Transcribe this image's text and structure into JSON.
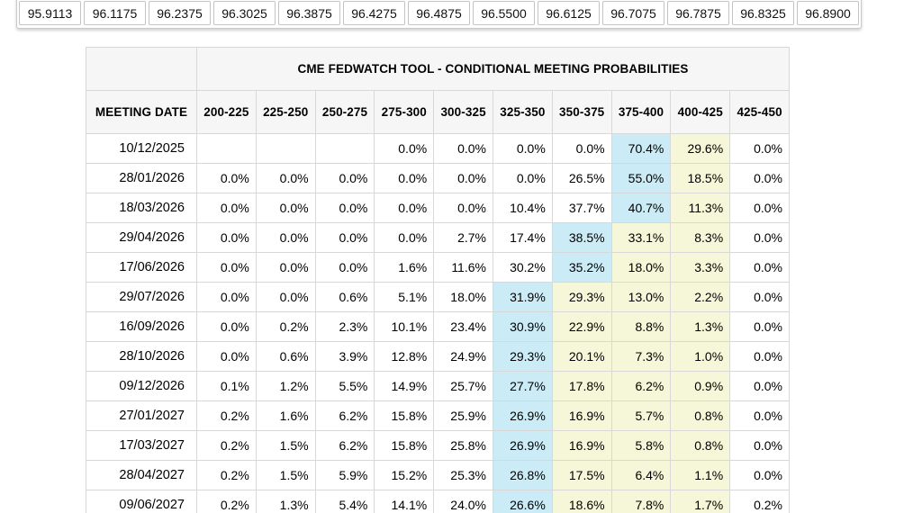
{
  "price_strip": {
    "values": [
      "95.9113",
      "96.1175",
      "96.2375",
      "96.3025",
      "96.3875",
      "96.4275",
      "96.4875",
      "96.5500",
      "96.6125",
      "96.7075",
      "96.7875",
      "96.8325",
      "96.8900"
    ]
  },
  "table": {
    "title": "CME FEDWATCH TOOL - CONDITIONAL MEETING PROBABILITIES",
    "date_header": "MEETING DATE",
    "rate_headers": [
      "200-225",
      "225-250",
      "250-275",
      "275-300",
      "300-325",
      "325-350",
      "350-375",
      "375-400",
      "400-425",
      "425-450"
    ],
    "rows": [
      {
        "date": "10/12/2025",
        "cells": [
          {
            "v": "",
            "hl": ""
          },
          {
            "v": "",
            "hl": ""
          },
          {
            "v": "",
            "hl": ""
          },
          {
            "v": "0.0%",
            "hl": ""
          },
          {
            "v": "0.0%",
            "hl": ""
          },
          {
            "v": "0.0%",
            "hl": ""
          },
          {
            "v": "0.0%",
            "hl": ""
          },
          {
            "v": "70.4%",
            "hl": "blue"
          },
          {
            "v": "29.6%",
            "hl": "yellow"
          },
          {
            "v": "0.0%",
            "hl": ""
          }
        ]
      },
      {
        "date": "28/01/2026",
        "cells": [
          {
            "v": "0.0%",
            "hl": ""
          },
          {
            "v": "0.0%",
            "hl": ""
          },
          {
            "v": "0.0%",
            "hl": ""
          },
          {
            "v": "0.0%",
            "hl": ""
          },
          {
            "v": "0.0%",
            "hl": ""
          },
          {
            "v": "0.0%",
            "hl": ""
          },
          {
            "v": "26.5%",
            "hl": ""
          },
          {
            "v": "55.0%",
            "hl": "blue"
          },
          {
            "v": "18.5%",
            "hl": "yellow"
          },
          {
            "v": "0.0%",
            "hl": ""
          }
        ]
      },
      {
        "date": "18/03/2026",
        "cells": [
          {
            "v": "0.0%",
            "hl": ""
          },
          {
            "v": "0.0%",
            "hl": ""
          },
          {
            "v": "0.0%",
            "hl": ""
          },
          {
            "v": "0.0%",
            "hl": ""
          },
          {
            "v": "0.0%",
            "hl": ""
          },
          {
            "v": "10.4%",
            "hl": ""
          },
          {
            "v": "37.7%",
            "hl": ""
          },
          {
            "v": "40.7%",
            "hl": "blue"
          },
          {
            "v": "11.3%",
            "hl": "yellow"
          },
          {
            "v": "0.0%",
            "hl": ""
          }
        ]
      },
      {
        "date": "29/04/2026",
        "cells": [
          {
            "v": "0.0%",
            "hl": ""
          },
          {
            "v": "0.0%",
            "hl": ""
          },
          {
            "v": "0.0%",
            "hl": ""
          },
          {
            "v": "0.0%",
            "hl": ""
          },
          {
            "v": "2.7%",
            "hl": ""
          },
          {
            "v": "17.4%",
            "hl": ""
          },
          {
            "v": "38.5%",
            "hl": "blue"
          },
          {
            "v": "33.1%",
            "hl": "yellow"
          },
          {
            "v": "8.3%",
            "hl": "yellow"
          },
          {
            "v": "0.0%",
            "hl": ""
          }
        ]
      },
      {
        "date": "17/06/2026",
        "cells": [
          {
            "v": "0.0%",
            "hl": ""
          },
          {
            "v": "0.0%",
            "hl": ""
          },
          {
            "v": "0.0%",
            "hl": ""
          },
          {
            "v": "1.6%",
            "hl": ""
          },
          {
            "v": "11.6%",
            "hl": ""
          },
          {
            "v": "30.2%",
            "hl": ""
          },
          {
            "v": "35.2%",
            "hl": "blue"
          },
          {
            "v": "18.0%",
            "hl": "yellow"
          },
          {
            "v": "3.3%",
            "hl": "yellow"
          },
          {
            "v": "0.0%",
            "hl": ""
          }
        ]
      },
      {
        "date": "29/07/2026",
        "cells": [
          {
            "v": "0.0%",
            "hl": ""
          },
          {
            "v": "0.0%",
            "hl": ""
          },
          {
            "v": "0.6%",
            "hl": ""
          },
          {
            "v": "5.1%",
            "hl": ""
          },
          {
            "v": "18.0%",
            "hl": ""
          },
          {
            "v": "31.9%",
            "hl": "blue"
          },
          {
            "v": "29.3%",
            "hl": "yellow"
          },
          {
            "v": "13.0%",
            "hl": "yellow"
          },
          {
            "v": "2.2%",
            "hl": "yellow"
          },
          {
            "v": "0.0%",
            "hl": ""
          }
        ]
      },
      {
        "date": "16/09/2026",
        "cells": [
          {
            "v": "0.0%",
            "hl": ""
          },
          {
            "v": "0.2%",
            "hl": ""
          },
          {
            "v": "2.3%",
            "hl": ""
          },
          {
            "v": "10.1%",
            "hl": ""
          },
          {
            "v": "23.4%",
            "hl": ""
          },
          {
            "v": "30.9%",
            "hl": "blue"
          },
          {
            "v": "22.9%",
            "hl": "yellow"
          },
          {
            "v": "8.8%",
            "hl": "yellow"
          },
          {
            "v": "1.3%",
            "hl": "yellow"
          },
          {
            "v": "0.0%",
            "hl": ""
          }
        ]
      },
      {
        "date": "28/10/2026",
        "cells": [
          {
            "v": "0.0%",
            "hl": ""
          },
          {
            "v": "0.6%",
            "hl": ""
          },
          {
            "v": "3.9%",
            "hl": ""
          },
          {
            "v": "12.8%",
            "hl": ""
          },
          {
            "v": "24.9%",
            "hl": ""
          },
          {
            "v": "29.3%",
            "hl": "blue"
          },
          {
            "v": "20.1%",
            "hl": "yellow"
          },
          {
            "v": "7.3%",
            "hl": "yellow"
          },
          {
            "v": "1.0%",
            "hl": "yellow"
          },
          {
            "v": "0.0%",
            "hl": ""
          }
        ]
      },
      {
        "date": "09/12/2026",
        "cells": [
          {
            "v": "0.1%",
            "hl": ""
          },
          {
            "v": "1.2%",
            "hl": ""
          },
          {
            "v": "5.5%",
            "hl": ""
          },
          {
            "v": "14.9%",
            "hl": ""
          },
          {
            "v": "25.7%",
            "hl": ""
          },
          {
            "v": "27.7%",
            "hl": "blue"
          },
          {
            "v": "17.8%",
            "hl": "yellow"
          },
          {
            "v": "6.2%",
            "hl": "yellow"
          },
          {
            "v": "0.9%",
            "hl": "yellow"
          },
          {
            "v": "0.0%",
            "hl": ""
          }
        ]
      },
      {
        "date": "27/01/2027",
        "cells": [
          {
            "v": "0.2%",
            "hl": ""
          },
          {
            "v": "1.6%",
            "hl": ""
          },
          {
            "v": "6.2%",
            "hl": ""
          },
          {
            "v": "15.8%",
            "hl": ""
          },
          {
            "v": "25.9%",
            "hl": ""
          },
          {
            "v": "26.9%",
            "hl": "blue"
          },
          {
            "v": "16.9%",
            "hl": "yellow"
          },
          {
            "v": "5.7%",
            "hl": "yellow"
          },
          {
            "v": "0.8%",
            "hl": "yellow"
          },
          {
            "v": "0.0%",
            "hl": ""
          }
        ]
      },
      {
        "date": "17/03/2027",
        "cells": [
          {
            "v": "0.2%",
            "hl": ""
          },
          {
            "v": "1.5%",
            "hl": ""
          },
          {
            "v": "6.2%",
            "hl": ""
          },
          {
            "v": "15.8%",
            "hl": ""
          },
          {
            "v": "25.8%",
            "hl": ""
          },
          {
            "v": "26.9%",
            "hl": "blue"
          },
          {
            "v": "16.9%",
            "hl": "yellow"
          },
          {
            "v": "5.8%",
            "hl": "yellow"
          },
          {
            "v": "0.8%",
            "hl": "yellow"
          },
          {
            "v": "0.0%",
            "hl": ""
          }
        ]
      },
      {
        "date": "28/04/2027",
        "cells": [
          {
            "v": "0.2%",
            "hl": ""
          },
          {
            "v": "1.5%",
            "hl": ""
          },
          {
            "v": "5.9%",
            "hl": ""
          },
          {
            "v": "15.2%",
            "hl": ""
          },
          {
            "v": "25.3%",
            "hl": ""
          },
          {
            "v": "26.8%",
            "hl": "blue"
          },
          {
            "v": "17.5%",
            "hl": "yellow"
          },
          {
            "v": "6.4%",
            "hl": "yellow"
          },
          {
            "v": "1.1%",
            "hl": "yellow"
          },
          {
            "v": "0.0%",
            "hl": ""
          }
        ]
      },
      {
        "date": "09/06/2027",
        "cells": [
          {
            "v": "0.2%",
            "hl": ""
          },
          {
            "v": "1.3%",
            "hl": ""
          },
          {
            "v": "5.4%",
            "hl": ""
          },
          {
            "v": "14.1%",
            "hl": ""
          },
          {
            "v": "24.0%",
            "hl": ""
          },
          {
            "v": "26.6%",
            "hl": "blue"
          },
          {
            "v": "18.6%",
            "hl": "yellow"
          },
          {
            "v": "7.8%",
            "hl": "yellow"
          },
          {
            "v": "1.7%",
            "hl": "yellow"
          },
          {
            "v": "0.2%",
            "hl": ""
          }
        ]
      }
    ]
  },
  "colors": {
    "highlight_blue": "#cbecf6",
    "highlight_yellow": "#f6f6d8",
    "header_bg": "#f6f6f6",
    "border": "#d8d8d8"
  }
}
